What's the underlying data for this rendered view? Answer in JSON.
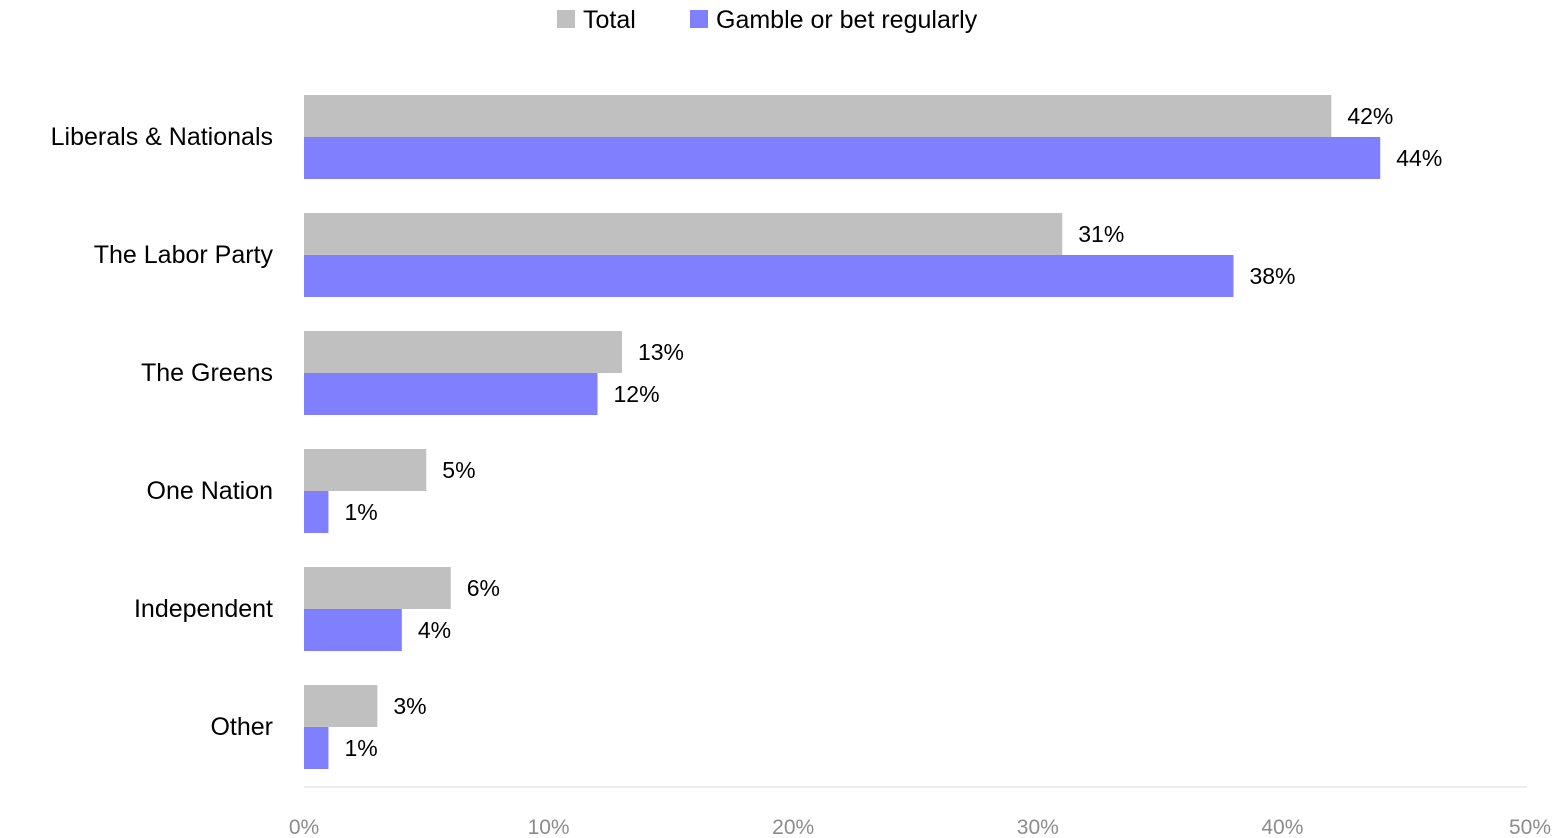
{
  "chart_data": {
    "type": "bar",
    "orientation": "horizontal",
    "title": "",
    "xlabel": "",
    "ylabel": "",
    "categories": [
      "Liberals & Nationals",
      "The Labor Party",
      "The Greens",
      "One Nation",
      "Independent",
      "Other"
    ],
    "series": [
      {
        "name": "Total",
        "color": "#c0c0c0",
        "values": [
          42,
          31,
          13,
          5,
          6,
          3
        ],
        "labels": [
          "42%",
          "31%",
          "13%",
          "5%",
          "6%",
          "3%"
        ]
      },
      {
        "name": "Gamble or bet regularly",
        "color": "#8080ff",
        "values": [
          44,
          38,
          12,
          1,
          4,
          1
        ],
        "labels": [
          "44%",
          "38%",
          "12%",
          "1%",
          "4%",
          "1%"
        ]
      }
    ],
    "xlim": [
      0,
      50
    ],
    "xticks": [
      0,
      10,
      20,
      30,
      40,
      50
    ],
    "xtick_labels": [
      "0%",
      "10%",
      "20%",
      "30%",
      "40%",
      "50%"
    ],
    "legend_position": "top-center",
    "grid": false
  }
}
